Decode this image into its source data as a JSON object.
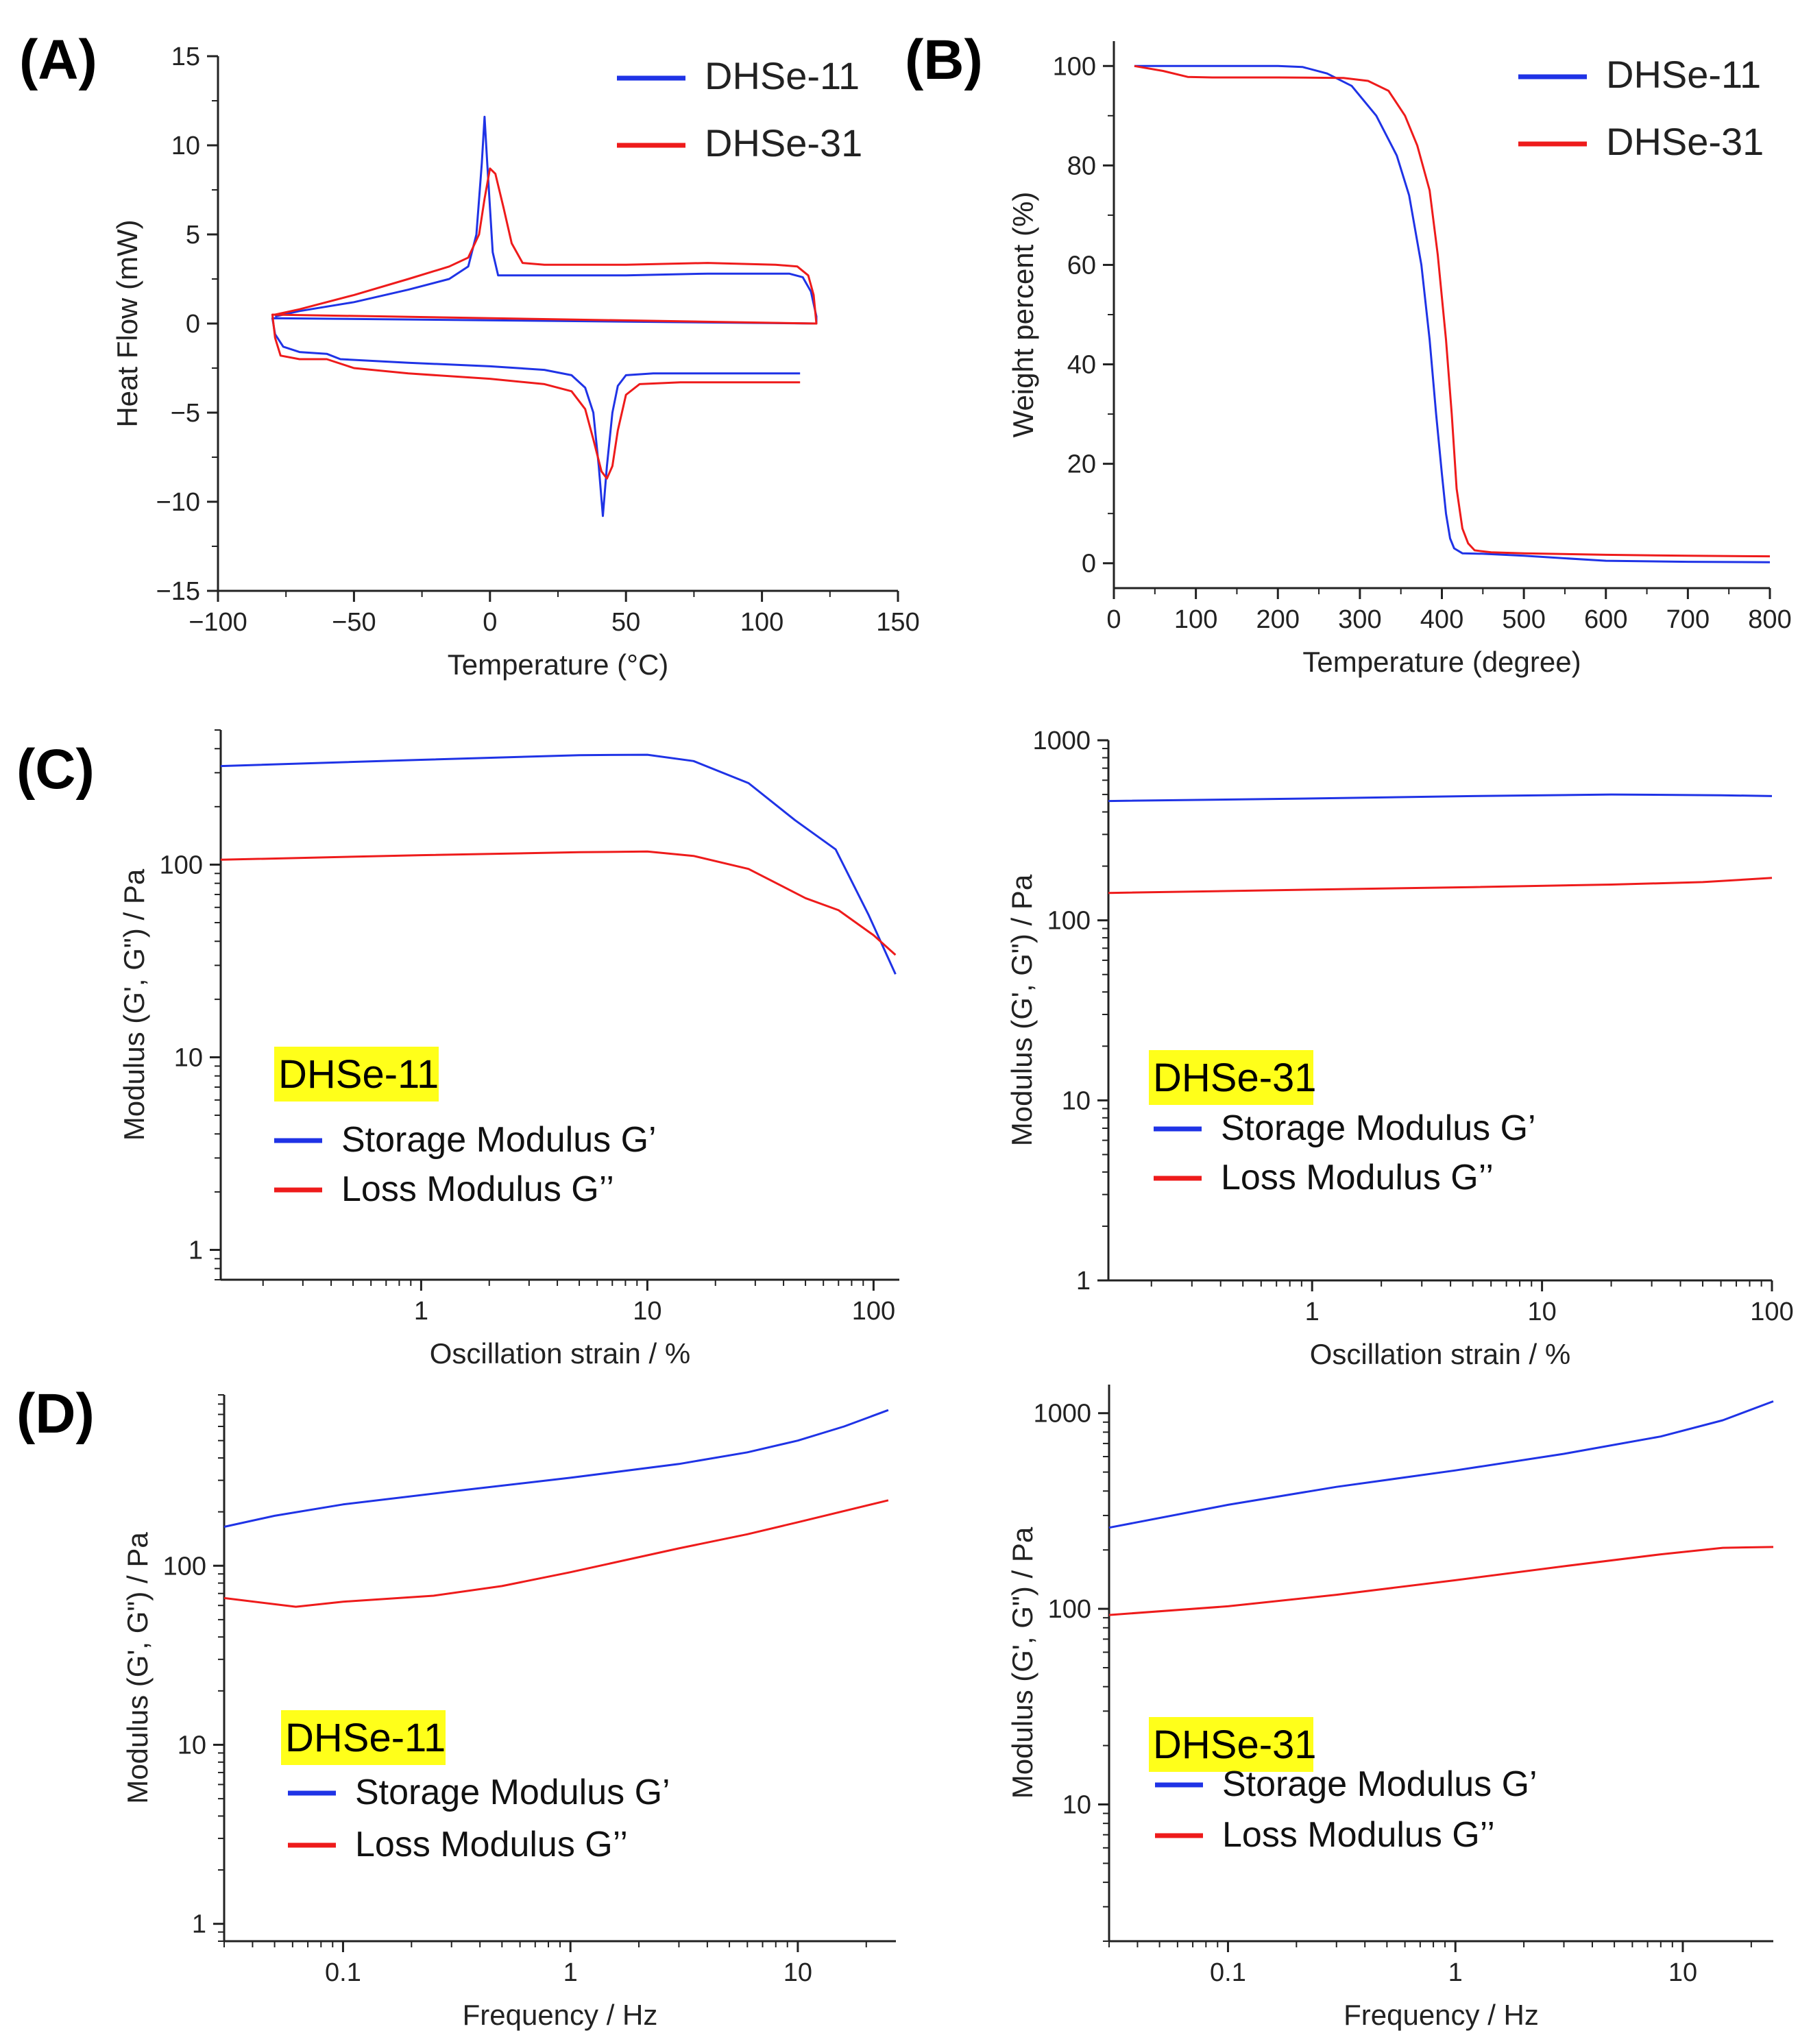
{
  "colors": {
    "blue": "#1f33e6",
    "red": "#ee1b1b",
    "highlight": "#ffff1a"
  },
  "panels": {
    "A": "(A)",
    "B": "(B)",
    "C": "(C)",
    "D": "(D)"
  },
  "chart_data": [
    {
      "id": "A",
      "type": "line",
      "scale": "linear",
      "xlabel": "Temperature (°C)",
      "ylabel": "Heat Flow (mW)",
      "xlim": [
        -100,
        150
      ],
      "ylim": [
        -15,
        15
      ],
      "xticks": [
        -100,
        -50,
        0,
        50,
        100,
        150
      ],
      "xtick_labels": [
        "−100",
        "−50",
        "0",
        "50",
        "100",
        "150"
      ],
      "yticks": [
        -15,
        -10,
        -5,
        0,
        5,
        10,
        15
      ],
      "ytick_labels": [
        "−15",
        "−10",
        "−5",
        "0",
        "5",
        "10",
        "15"
      ],
      "legend": [
        "DHSe-11",
        "DHSe-31"
      ],
      "series": [
        {
          "name": "DHSe-11",
          "color": "blue",
          "points": [
            [
              -79,
              0.4
            ],
            [
              -70,
              0.7
            ],
            [
              -50,
              1.2
            ],
            [
              -30,
              1.9
            ],
            [
              -15,
              2.5
            ],
            [
              -8,
              3.2
            ],
            [
              -5,
              5
            ],
            [
              -3,
              9
            ],
            [
              -2,
              11.6
            ],
            [
              -1,
              9
            ],
            [
              1,
              4
            ],
            [
              3,
              2.7
            ],
            [
              20,
              2.7
            ],
            [
              50,
              2.7
            ],
            [
              80,
              2.8
            ],
            [
              110,
              2.8
            ],
            [
              115,
              2.6
            ],
            [
              118,
              1.8
            ],
            [
              120,
              0.4
            ],
            [
              120,
              0
            ],
            [
              -80,
              0.3
            ],
            [
              -79,
              -0.6
            ],
            [
              -76,
              -1.3
            ],
            [
              -70,
              -1.6
            ],
            [
              -60,
              -1.7
            ],
            [
              -55,
              -2
            ],
            [
              -30,
              -2.2
            ],
            [
              0,
              -2.4
            ],
            [
              20,
              -2.6
            ],
            [
              30,
              -2.9
            ],
            [
              35,
              -3.6
            ],
            [
              38,
              -5
            ],
            [
              40,
              -8
            ],
            [
              41.5,
              -10.8
            ],
            [
              43,
              -8
            ],
            [
              45,
              -5
            ],
            [
              47,
              -3.5
            ],
            [
              50,
              -2.9
            ],
            [
              60,
              -2.8
            ],
            [
              80,
              -2.8
            ],
            [
              114,
              -2.8
            ]
          ]
        },
        {
          "name": "DHSe-31",
          "color": "red",
          "points": [
            [
              -79,
              0.5
            ],
            [
              -70,
              0.8
            ],
            [
              -50,
              1.6
            ],
            [
              -30,
              2.5
            ],
            [
              -15,
              3.2
            ],
            [
              -8,
              3.7
            ],
            [
              -4,
              5
            ],
            [
              -2,
              7
            ],
            [
              0,
              8.7
            ],
            [
              2,
              8.4
            ],
            [
              5,
              6.5
            ],
            [
              8,
              4.5
            ],
            [
              12,
              3.4
            ],
            [
              20,
              3.3
            ],
            [
              50,
              3.3
            ],
            [
              80,
              3.4
            ],
            [
              105,
              3.3
            ],
            [
              113,
              3.2
            ],
            [
              117,
              2.7
            ],
            [
              119,
              1.6
            ],
            [
              120,
              0
            ],
            [
              -80,
              0.5
            ],
            [
              -79,
              -0.8
            ],
            [
              -77,
              -1.8
            ],
            [
              -70,
              -2
            ],
            [
              -60,
              -2
            ],
            [
              -50,
              -2.5
            ],
            [
              -30,
              -2.8
            ],
            [
              0,
              -3.1
            ],
            [
              20,
              -3.4
            ],
            [
              30,
              -3.8
            ],
            [
              35,
              -4.8
            ],
            [
              38,
              -6.5
            ],
            [
              41,
              -8.3
            ],
            [
              43,
              -8.7
            ],
            [
              45,
              -8
            ],
            [
              47,
              -6
            ],
            [
              50,
              -4
            ],
            [
              55,
              -3.4
            ],
            [
              70,
              -3.3
            ],
            [
              114,
              -3.3
            ]
          ]
        }
      ]
    },
    {
      "id": "B",
      "type": "line",
      "scale": "linear",
      "xlabel": "Temperature (degree)",
      "ylabel": "Weight percent (%)",
      "xlim": [
        0,
        800
      ],
      "ylim": [
        -5,
        105
      ],
      "xticks": [
        0,
        100,
        200,
        300,
        400,
        500,
        600,
        700,
        800
      ],
      "xtick_labels": [
        "0",
        "100",
        "200",
        "300",
        "400",
        "500",
        "600",
        "700",
        "800"
      ],
      "yticks": [
        0,
        20,
        40,
        60,
        80,
        100
      ],
      "ytick_labels": [
        "0",
        "20",
        "40",
        "60",
        "80",
        "100"
      ],
      "legend": [
        "DHSe-11",
        "DHSe-31"
      ],
      "series": [
        {
          "name": "DHSe-11",
          "color": "blue",
          "points": [
            [
              25,
              100
            ],
            [
              100,
              100
            ],
            [
              200,
              100
            ],
            [
              230,
              99.8
            ],
            [
              260,
              98.5
            ],
            [
              290,
              96
            ],
            [
              320,
              90
            ],
            [
              345,
              82
            ],
            [
              360,
              74
            ],
            [
              375,
              60
            ],
            [
              385,
              45
            ],
            [
              393,
              30
            ],
            [
              400,
              18
            ],
            [
              405,
              10
            ],
            [
              410,
              5
            ],
            [
              415,
              3
            ],
            [
              425,
              2
            ],
            [
              450,
              1.9
            ],
            [
              500,
              1.5
            ],
            [
              550,
              1
            ],
            [
              600,
              0.5
            ],
            [
              700,
              0.3
            ],
            [
              800,
              0.2
            ]
          ]
        },
        {
          "name": "DHSe-31",
          "color": "red",
          "points": [
            [
              25,
              100
            ],
            [
              60,
              99
            ],
            [
              90,
              97.8
            ],
            [
              120,
              97.7
            ],
            [
              200,
              97.7
            ],
            [
              280,
              97.6
            ],
            [
              310,
              97
            ],
            [
              335,
              95
            ],
            [
              355,
              90
            ],
            [
              370,
              84
            ],
            [
              385,
              75
            ],
            [
              395,
              62
            ],
            [
              405,
              45
            ],
            [
              412,
              30
            ],
            [
              418,
              15
            ],
            [
              425,
              7
            ],
            [
              432,
              4
            ],
            [
              440,
              2.6
            ],
            [
              460,
              2.2
            ],
            [
              500,
              2
            ],
            [
              600,
              1.7
            ],
            [
              700,
              1.5
            ],
            [
              800,
              1.4
            ]
          ]
        }
      ]
    },
    {
      "id": "C1",
      "type": "line",
      "scale": "loglog",
      "xlabel": "Oscillation strain / %",
      "ylabel": "Modulus (G', G\") / Pa",
      "xlim": [
        0.13,
        130
      ],
      "ylim": [
        0.7,
        500
      ],
      "xticks": [
        1,
        10,
        100
      ],
      "xtick_labels": [
        "1",
        "10",
        "100"
      ],
      "yticks": [
        1,
        10,
        100
      ],
      "ytick_labels": [
        "1",
        "10",
        "100"
      ],
      "sample": "DHSe-11",
      "legend": [
        "Storage Modulus G’",
        "Loss Modulus G’’"
      ],
      "series": [
        {
          "name": "Storage Modulus G’",
          "color": "blue",
          "points": [
            [
              0.13,
              325
            ],
            [
              1,
              350
            ],
            [
              5,
              370
            ],
            [
              10,
              372
            ],
            [
              16,
              345
            ],
            [
              28,
              265
            ],
            [
              45,
              170
            ],
            [
              68,
              120
            ],
            [
              95,
              55
            ],
            [
              125,
              27
            ]
          ]
        },
        {
          "name": "Loss Modulus G’’",
          "color": "red",
          "points": [
            [
              0.13,
              106
            ],
            [
              1,
              112
            ],
            [
              5,
              116
            ],
            [
              10,
              117
            ],
            [
              16,
              111
            ],
            [
              28,
              95
            ],
            [
              50,
              67
            ],
            [
              70,
              58
            ],
            [
              100,
              43
            ],
            [
              125,
              34
            ]
          ]
        }
      ]
    },
    {
      "id": "C2",
      "type": "line",
      "scale": "loglog",
      "xlabel": "Oscillation strain / %",
      "ylabel": "Modulus (G', G\") / Pa",
      "xlim": [
        0.13,
        100
      ],
      "ylim": [
        1,
        1000
      ],
      "xticks": [
        1,
        10,
        100
      ],
      "xtick_labels": [
        "1",
        "10",
        "100"
      ],
      "yticks": [
        1,
        10,
        100,
        1000
      ],
      "ytick_labels": [
        "1",
        "10",
        "100",
        "1000"
      ],
      "sample": "DHSe-31",
      "legend": [
        "Storage Modulus G’",
        "Loss Modulus G’’"
      ],
      "series": [
        {
          "name": "Storage Modulus G’",
          "color": "blue",
          "points": [
            [
              0.13,
              460
            ],
            [
              1,
              475
            ],
            [
              5,
              490
            ],
            [
              20,
              500
            ],
            [
              60,
              495
            ],
            [
              100,
              490
            ]
          ]
        },
        {
          "name": "Loss Modulus G’’",
          "color": "red",
          "points": [
            [
              0.13,
              142
            ],
            [
              1,
              148
            ],
            [
              5,
              153
            ],
            [
              20,
              158
            ],
            [
              50,
              163
            ],
            [
              100,
              172
            ]
          ]
        }
      ]
    },
    {
      "id": "D1",
      "type": "line",
      "scale": "loglog",
      "xlabel": "Frequency / Hz",
      "ylabel": "Modulus (G', G\") / Pa",
      "xlim": [
        0.03,
        27
      ],
      "ylim": [
        0.8,
        900
      ],
      "xticks": [
        0.1,
        1,
        10
      ],
      "xtick_labels": [
        "0.1",
        "1",
        "10"
      ],
      "yticks": [
        1,
        10,
        100
      ],
      "ytick_labels": [
        "1",
        "10",
        "100"
      ],
      "sample": "DHSe-11",
      "legend": [
        "Storage Modulus G’",
        "Loss Modulus G’’"
      ],
      "series": [
        {
          "name": "Storage Modulus G’",
          "color": "blue",
          "points": [
            [
              0.03,
              165
            ],
            [
              0.05,
              190
            ],
            [
              0.1,
              220
            ],
            [
              0.3,
              260
            ],
            [
              1,
              310
            ],
            [
              3,
              370
            ],
            [
              6,
              430
            ],
            [
              10,
              500
            ],
            [
              16,
              600
            ],
            [
              25,
              740
            ]
          ]
        },
        {
          "name": "Loss Modulus G’’",
          "color": "red",
          "points": [
            [
              0.03,
              66
            ],
            [
              0.062,
              59
            ],
            [
              0.1,
              63
            ],
            [
              0.25,
              68
            ],
            [
              0.5,
              77
            ],
            [
              1,
              92
            ],
            [
              3,
              125
            ],
            [
              6,
              150
            ],
            [
              10,
              175
            ],
            [
              25,
              232
            ]
          ]
        }
      ]
    },
    {
      "id": "D2",
      "type": "line",
      "scale": "loglog",
      "xlabel": "Frequency / Hz",
      "ylabel": "Modulus (G', G\") / Pa",
      "xlim": [
        0.03,
        25
      ],
      "ylim": [
        2,
        1400
      ],
      "xticks": [
        0.1,
        1,
        10
      ],
      "xtick_labels": [
        "0.1",
        "1",
        "10"
      ],
      "yticks": [
        10,
        100,
        1000
      ],
      "ytick_labels": [
        "10",
        "100",
        "1000"
      ],
      "sample": "DHSe-31",
      "legend": [
        "Storage Modulus G’",
        "Loss Modulus G’’"
      ],
      "series": [
        {
          "name": "Storage Modulus G’",
          "color": "blue",
          "points": [
            [
              0.03,
              260
            ],
            [
              0.1,
              340
            ],
            [
              0.3,
              420
            ],
            [
              1,
              510
            ],
            [
              3,
              620
            ],
            [
              8,
              760
            ],
            [
              15,
              920
            ],
            [
              25,
              1150
            ]
          ]
        },
        {
          "name": "Loss Modulus G’’",
          "color": "red",
          "points": [
            [
              0.03,
              93
            ],
            [
              0.1,
              103
            ],
            [
              0.3,
              118
            ],
            [
              1,
              140
            ],
            [
              3,
              165
            ],
            [
              8,
              190
            ],
            [
              15,
              205
            ],
            [
              25,
              207
            ]
          ]
        }
      ]
    }
  ]
}
